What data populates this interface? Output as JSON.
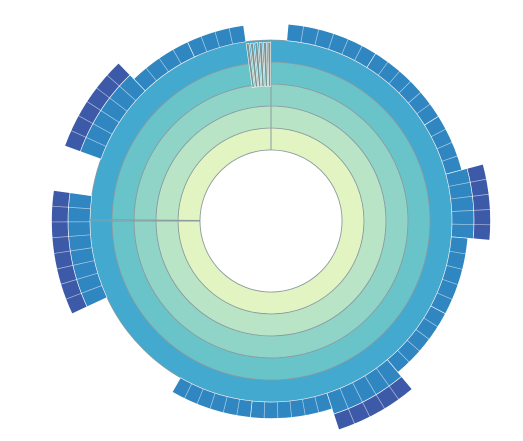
{
  "chart_data": {
    "type": "sunburst",
    "title": "",
    "levels": 7,
    "level_colors": [
      "#e1f4c2",
      "#b9e5c6",
      "#90d4c7",
      "#69c4ca",
      "#44a9cf",
      "#2f86c0",
      "#3d5aa8"
    ],
    "separator_color": "#8a9aa0",
    "root_sectors": [
      {
        "start_deg": 0,
        "end_deg": 270
      },
      {
        "start_deg": 270,
        "end_deg": 360
      }
    ],
    "outer_sectors": [
      {
        "level": 5,
        "start_deg": 5,
        "end_deg": 32
      },
      {
        "level": 5,
        "start_deg": 32,
        "end_deg": 58
      },
      {
        "level": 5,
        "start_deg": 58,
        "end_deg": 75
      },
      {
        "level": 6,
        "start_deg": 75,
        "end_deg": 95
      },
      {
        "level": 5,
        "start_deg": 95,
        "end_deg": 118
      },
      {
        "level": 5,
        "start_deg": 118,
        "end_deg": 140
      },
      {
        "level": 6,
        "start_deg": 140,
        "end_deg": 162
      },
      {
        "level": 5,
        "start_deg": 162,
        "end_deg": 186
      },
      {
        "level": 5,
        "start_deg": 186,
        "end_deg": 210
      },
      {
        "level": 4,
        "start_deg": 210,
        "end_deg": 245
      },
      {
        "level": 6,
        "start_deg": 245,
        "end_deg": 278
      },
      {
        "level": 6,
        "start_deg": 290,
        "end_deg": 316
      },
      {
        "level": 5,
        "start_deg": 316,
        "end_deg": 335
      },
      {
        "level": 5,
        "start_deg": 335,
        "end_deg": 352
      }
    ]
  }
}
